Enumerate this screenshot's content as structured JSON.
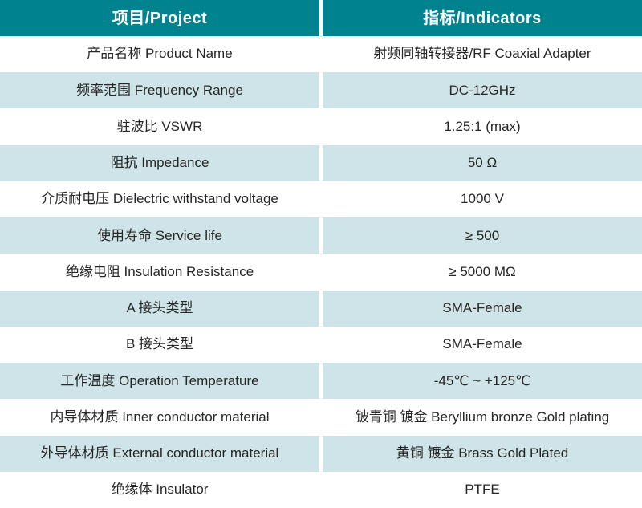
{
  "colors": {
    "header_bg": "#00838F",
    "row_alt_bg": "#CFE4E8",
    "header_text": "#FFFFFF",
    "body_text": "#262626"
  },
  "table": {
    "headers": [
      {
        "label": "项目/Project"
      },
      {
        "label": "指标/Indicators"
      }
    ],
    "rows": [
      {
        "label": "产品名称 Product Name",
        "value": "射频同轴转接器/RF Coaxial Adapter"
      },
      {
        "label": "频率范围 Frequency Range",
        "value": "DC-12GHz"
      },
      {
        "label": "驻波比 VSWR",
        "value": "1.25:1 (max)"
      },
      {
        "label": "阻抗 Impedance",
        "value": "50 Ω"
      },
      {
        "label": "介质耐电压 Dielectric withstand voltage",
        "value": "1000 V"
      },
      {
        "label": "使用寿命 Service life",
        "value": "≥ 500"
      },
      {
        "label": "绝缘电阻 Insulation Resistance",
        "value": "≥ 5000 MΩ"
      },
      {
        "label": "A 接头类型",
        "value": "SMA-Female"
      },
      {
        "label": "B 接头类型",
        "value": "SMA-Female"
      },
      {
        "label": "工作温度 Operation Temperature",
        "value": "-45℃ ~ +125℃"
      },
      {
        "label": "内导体材质 Inner conductor material",
        "value": "铍青铜 镀金 Beryllium bronze Gold plating"
      },
      {
        "label": "外导体材质 External conductor material",
        "value": "黄铜 镀金 Brass Gold Plated"
      },
      {
        "label": "绝缘体 Insulator",
        "value": "PTFE"
      }
    ]
  }
}
